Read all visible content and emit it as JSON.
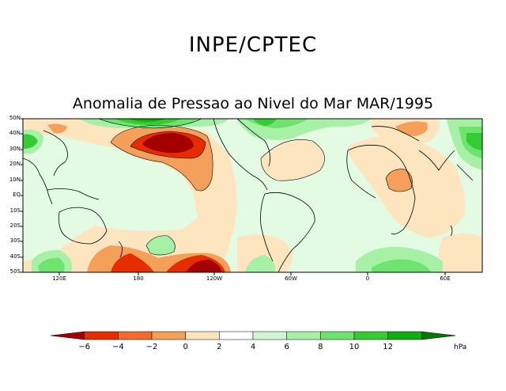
{
  "header": {
    "org": "INPE/CPTEC",
    "map_title": "Anomalia de Pressao ao Nivel do Mar MAR/1995"
  },
  "axes": {
    "lat_labels": [
      "50N",
      "40N",
      "30N",
      "20N",
      "10N",
      "EQ",
      "10S",
      "20S",
      "30S",
      "40S",
      "50S"
    ],
    "lon_labels": [
      "120E",
      "180",
      "120W",
      "60W",
      "0",
      "60E"
    ]
  },
  "colorbar": {
    "ticks": [
      "−6",
      "−4",
      "−2",
      "0",
      "2",
      "4",
      "6",
      "8",
      "10",
      "12"
    ],
    "unit": "hPa",
    "colors": [
      "#a50000",
      "#e62d00",
      "#f46a2c",
      "#f5a05a",
      "#fde5c0",
      "#ffffff",
      "#d2f7d2",
      "#a6f1a6",
      "#6ee36e",
      "#33cc33",
      "#0fae0f",
      "#007a00"
    ]
  },
  "palette": {
    "neg6": "#a50000",
    "neg4": "#e62d00",
    "neg2": "#f5a05a",
    "neg0": "#fde5c0",
    "pos0": "#e3fbe3",
    "pos2": "#a6f1a6",
    "pos4": "#6ee36e",
    "pos6": "#33cc33",
    "pos10": "#0fae0f",
    "coast": "#000000"
  }
}
